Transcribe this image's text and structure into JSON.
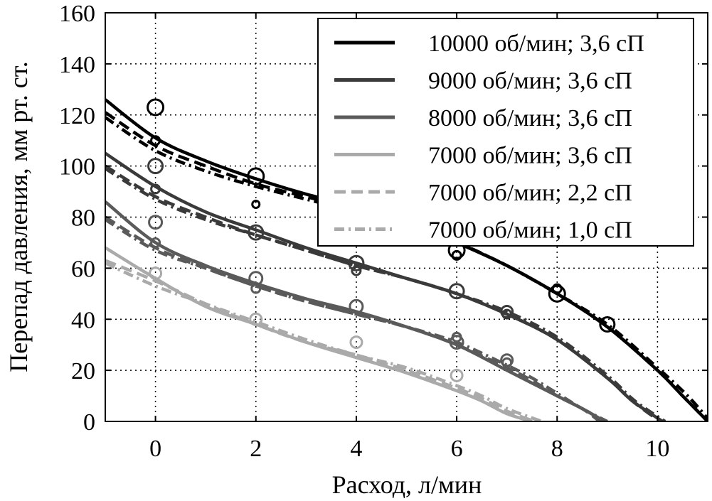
{
  "chart_data": {
    "type": "line",
    "xlabel": "Расход, л/мин",
    "ylabel": "Перепад давления, мм рт. ст.",
    "xlim": [
      -1,
      11
    ],
    "ylim": [
      0,
      160
    ],
    "xticks": [
      "0",
      "2",
      "4",
      "6",
      "8",
      "10"
    ],
    "yticks": [
      "0",
      "20",
      "40",
      "60",
      "80",
      "100",
      "120",
      "140",
      "160"
    ],
    "grid": true,
    "legend_position": "top-right",
    "series": [
      {
        "name": "10000 об/мин; 3,6 сП",
        "color": "#000000",
        "dash": "solid",
        "x": [
          -1,
          0,
          1,
          2,
          3,
          4,
          5,
          6,
          7,
          8,
          9,
          10,
          10.5,
          11
        ],
        "y": [
          126,
          111,
          102,
          95,
          89,
          84,
          78,
          70,
          61,
          50,
          37,
          20,
          10,
          0
        ]
      },
      {
        "name": "9000 об/мин; 3,6 сП",
        "color": "#3a3a3a",
        "dash": "solid",
        "x": [
          -1,
          0,
          1,
          2,
          3,
          4,
          5,
          6,
          7,
          8,
          9,
          9.5,
          10.1
        ],
        "y": [
          105,
          92,
          82,
          75,
          68,
          62,
          56,
          50,
          42,
          32,
          17,
          8,
          0
        ]
      },
      {
        "name": "8000 об/мин; 3,6 сП",
        "color": "#5a5a5a",
        "dash": "solid",
        "x": [
          -1,
          0,
          1,
          2,
          3,
          4,
          5,
          6,
          7,
          7.5,
          8,
          8.5,
          8.95
        ],
        "y": [
          86,
          70,
          61,
          54,
          48,
          43,
          37,
          30,
          20,
          15,
          10,
          5,
          0
        ]
      },
      {
        "name": "7000 об/мин; 3,6 сП",
        "color": "#aaaaaa",
        "dash": "solid",
        "x": [
          -1,
          0,
          1,
          2,
          3,
          4,
          5,
          6,
          6.5,
          7,
          7.5
        ],
        "y": [
          68,
          56,
          45,
          38,
          31,
          25,
          19,
          12,
          8,
          3,
          0
        ]
      },
      {
        "name": "7000 об/мин; 2,2 сП",
        "color": "#aaaaaa",
        "dash": "dashed",
        "x": [
          -1,
          0,
          1,
          2,
          3,
          4,
          5,
          6,
          6.5,
          7,
          7.55
        ],
        "y": [
          63,
          55,
          46,
          38,
          31,
          26,
          20,
          13,
          9,
          4,
          0
        ]
      },
      {
        "name": "7000 об/мин; 1,0 сП",
        "color": "#aaaaaa",
        "dash": "dashdot",
        "x": [
          -1,
          0,
          1,
          2,
          3,
          4,
          5,
          6,
          6.5,
          7,
          7.7
        ],
        "y": [
          62,
          53,
          46,
          39,
          32,
          26,
          21,
          14,
          10,
          5,
          0
        ]
      }
    ],
    "extra_lines": [
      {
        "color": "#000000",
        "dash": "dashed",
        "x": [
          -1,
          0,
          1,
          2,
          3,
          4,
          5,
          6,
          7,
          8,
          9,
          10,
          10.5,
          11
        ],
        "y": [
          121,
          108,
          100,
          93,
          88,
          83,
          77,
          70,
          61,
          50,
          37,
          20,
          10,
          0
        ]
      },
      {
        "color": "#000000",
        "dash": "dashdot",
        "x": [
          -1,
          0,
          1,
          2,
          3,
          4,
          5,
          6,
          7,
          8,
          9,
          10,
          10.6,
          11.05
        ],
        "y": [
          119,
          106,
          98,
          92,
          87,
          82,
          76,
          70,
          61,
          50,
          38,
          21,
          10,
          0
        ]
      },
      {
        "color": "#3a3a3a",
        "dash": "dashed",
        "x": [
          -1,
          0,
          1,
          2,
          3,
          4,
          5,
          6,
          7,
          8,
          9,
          9.5,
          10.05
        ],
        "y": [
          100,
          88,
          80,
          73,
          67,
          61,
          56,
          50,
          42,
          32,
          17,
          8,
          0
        ]
      },
      {
        "color": "#3a3a3a",
        "dash": "dashdot",
        "x": [
          -1,
          0,
          1,
          2,
          3,
          4,
          5,
          6,
          7,
          8,
          9,
          9.55,
          10.15
        ],
        "y": [
          99,
          87,
          79,
          73,
          67,
          61,
          56,
          50,
          43,
          33,
          18,
          8,
          0
        ]
      },
      {
        "color": "#5a5a5a",
        "dash": "dashed",
        "x": [
          -1,
          0,
          1,
          2,
          3,
          4,
          5,
          6,
          7,
          7.5,
          8,
          8.5,
          8.85
        ],
        "y": [
          80,
          68,
          60,
          53,
          47,
          42,
          37,
          30,
          21,
          16,
          10,
          5,
          0
        ]
      },
      {
        "color": "#5a5a5a",
        "dash": "dashdot",
        "x": [
          -1,
          0,
          1,
          2,
          3,
          4,
          5,
          6,
          7,
          7.5,
          8,
          8.5,
          9.0
        ],
        "y": [
          79,
          67,
          60,
          53,
          47,
          42,
          37,
          31,
          22,
          17,
          11,
          5,
          0
        ]
      }
    ],
    "points": [
      {
        "x": 0,
        "y": 123,
        "r": 11,
        "color": "#000000"
      },
      {
        "x": 0,
        "y": 110,
        "r": 6,
        "color": "#000000"
      },
      {
        "x": 2,
        "y": 96,
        "r": 11,
        "color": "#000000"
      },
      {
        "x": 2,
        "y": 85,
        "r": 5,
        "color": "#000000"
      },
      {
        "x": 6,
        "y": 67,
        "r": 11,
        "color": "#000000"
      },
      {
        "x": 6,
        "y": 65,
        "r": 6,
        "color": "#000000"
      },
      {
        "x": 8,
        "y": 52,
        "r": 6,
        "color": "#000000"
      },
      {
        "x": 8,
        "y": 50,
        "r": 11,
        "color": "#000000"
      },
      {
        "x": 9,
        "y": 38,
        "r": 10,
        "color": "#000000"
      },
      {
        "x": 0,
        "y": 100,
        "r": 10,
        "color": "#3a3a3a"
      },
      {
        "x": 0,
        "y": 91,
        "r": 6,
        "color": "#3a3a3a"
      },
      {
        "x": 2,
        "y": 74,
        "r": 10,
        "color": "#3a3a3a"
      },
      {
        "x": 4,
        "y": 62,
        "r": 10,
        "color": "#3a3a3a"
      },
      {
        "x": 4,
        "y": 59,
        "r": 6,
        "color": "#3a3a3a"
      },
      {
        "x": 6,
        "y": 51,
        "r": 10,
        "color": "#3a3a3a"
      },
      {
        "x": 7,
        "y": 43,
        "r": 8,
        "color": "#3a3a3a"
      },
      {
        "x": 7,
        "y": 42,
        "r": 6,
        "color": "#3a3a3a"
      },
      {
        "x": 0,
        "y": 78,
        "r": 9,
        "color": "#5a5a5a"
      },
      {
        "x": 0,
        "y": 70,
        "r": 6,
        "color": "#5a5a5a"
      },
      {
        "x": 2,
        "y": 56,
        "r": 9,
        "color": "#5a5a5a"
      },
      {
        "x": 2,
        "y": 52,
        "r": 6,
        "color": "#5a5a5a"
      },
      {
        "x": 4,
        "y": 45,
        "r": 9,
        "color": "#5a5a5a"
      },
      {
        "x": 6,
        "y": 33,
        "r": 6,
        "color": "#5a5a5a"
      },
      {
        "x": 6,
        "y": 31,
        "r": 9,
        "color": "#5a5a5a"
      },
      {
        "x": 7,
        "y": 24,
        "r": 8,
        "color": "#5a5a5a"
      },
      {
        "x": 7,
        "y": 23,
        "r": 6,
        "color": "#5a5a5a"
      },
      {
        "x": 0,
        "y": 58,
        "r": 8,
        "color": "#aaaaaa"
      },
      {
        "x": 2,
        "y": 40,
        "r": 8,
        "color": "#aaaaaa"
      },
      {
        "x": 4,
        "y": 31,
        "r": 8,
        "color": "#aaaaaa"
      },
      {
        "x": 6,
        "y": 18,
        "r": 8,
        "color": "#aaaaaa"
      }
    ]
  }
}
